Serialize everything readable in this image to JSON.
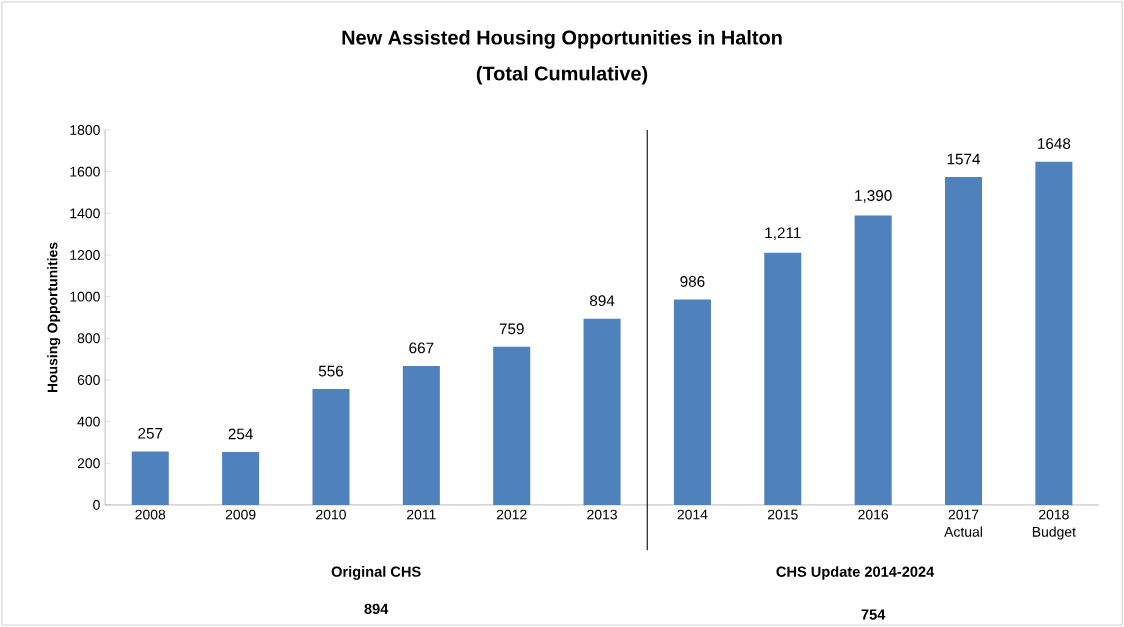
{
  "chart_data": {
    "type": "bar",
    "title": "New Assisted Housing Opportunities in Halton",
    "subtitle": "(Total Cumulative)",
    "ylabel": "Housing Opportunities",
    "categories": [
      "2008",
      "2009",
      "2010",
      "2011",
      "2012",
      "2013",
      "2014",
      "2015",
      "2016",
      "2017 Actual",
      "2018 Budget"
    ],
    "values": [
      257,
      254,
      556,
      667,
      759,
      894,
      986,
      1211,
      1390,
      1574,
      1648
    ],
    "value_labels": [
      "257",
      "254",
      "556",
      "667",
      "759",
      "894",
      "986",
      "1,211",
      "1,390",
      "1574",
      "1648"
    ],
    "color": "#4f81bd",
    "ylim": [
      0,
      1800
    ],
    "yticks": [
      0,
      200,
      400,
      600,
      800,
      1000,
      1200,
      1400,
      1600,
      1800
    ],
    "grid": false,
    "annotations": [
      "Original CHS",
      "894",
      "CHS Update 2014-2024",
      "754"
    ]
  }
}
